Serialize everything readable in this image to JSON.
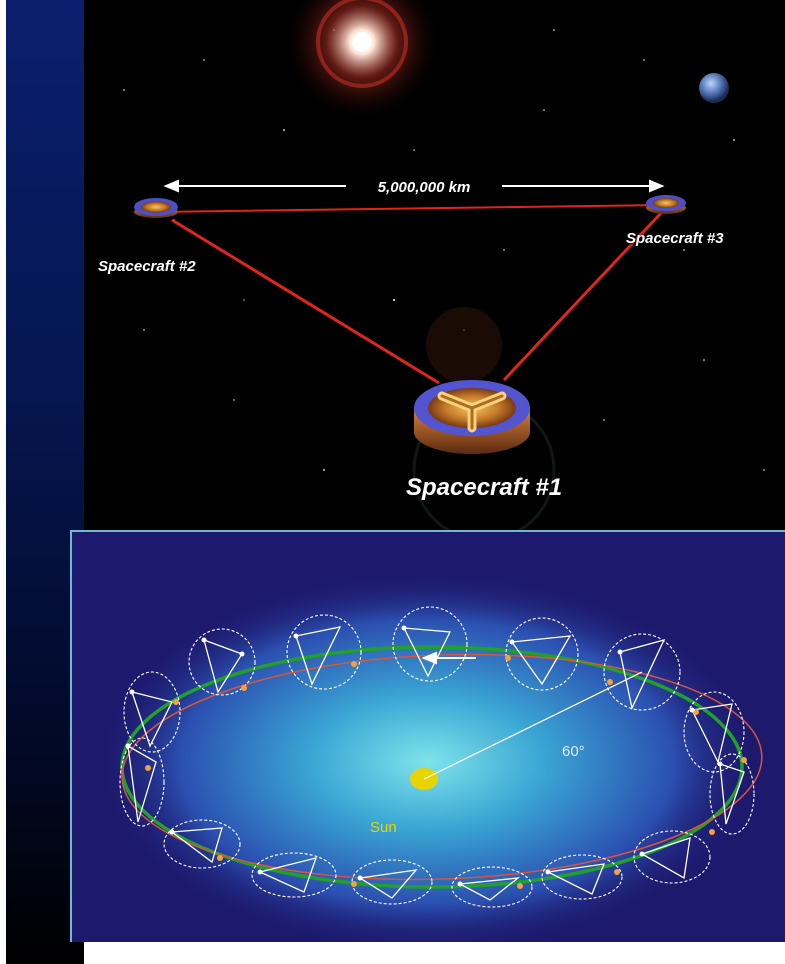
{
  "top": {
    "distance_label": "5,000,000 km",
    "spacecraft_1": "Spacecraft #1",
    "spacecraft_2": "Spacecraft #2",
    "spacecraft_3": "Spacecraft #3"
  },
  "bottom": {
    "sun_label": "Sun",
    "angle_label": "60°"
  },
  "colors": {
    "space": "#000000",
    "laser": "#e0261a",
    "orbit_green": "#21a12a",
    "orbit_red": "#d8553e",
    "sun": "#e8d400",
    "panel_bg": "#1d1a6e",
    "panel_border": "#6fb6d8"
  }
}
